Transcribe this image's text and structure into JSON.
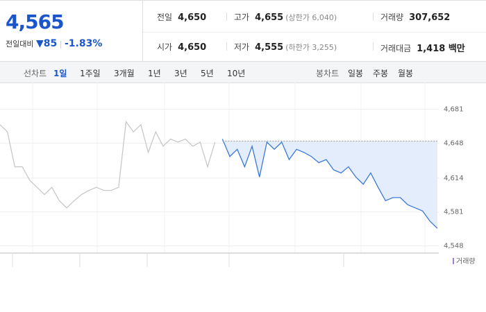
{
  "header": {
    "price": "4,565",
    "change_label": "전일대비",
    "change": "85",
    "change_pct": "-1.83%"
  },
  "quote": {
    "rows": [
      [
        {
          "label": "전일",
          "value": "4,650"
        },
        {
          "label": "고가",
          "value": "4,655",
          "note": "(상한가 6,040)"
        },
        {
          "label": "거래량",
          "value": "307,652"
        }
      ],
      [
        {
          "label": "시가",
          "value": "4,650"
        },
        {
          "label": "저가",
          "value": "4,555",
          "note": "(하한가 3,255)"
        },
        {
          "label": "거래대금",
          "value": "1,418 백만"
        }
      ]
    ]
  },
  "tabs": {
    "line_label": "선차트",
    "line_periods": [
      "1일",
      "1주일",
      "3개월",
      "1년",
      "3년",
      "5년",
      "10년"
    ],
    "selected": 0,
    "candle_label": "봉차트",
    "candle_periods": [
      "일봉",
      "주봉",
      "월봉"
    ]
  },
  "chart_data": {
    "type": "line",
    "legend": "거래량",
    "series": [
      {
        "color": "#c8c8c8",
        "values": [
          4666,
          4659,
          4625,
          4625,
          4612,
          4605,
          4598,
          4605,
          4592,
          4585,
          4592,
          4598,
          4602,
          4605,
          4602,
          4602,
          4605,
          4669,
          4659,
          4666,
          4639,
          4659,
          4645,
          4652,
          4649,
          4652,
          4645,
          4649,
          4625,
          4649,
          null,
          null,
          null,
          null,
          null,
          null,
          null,
          null,
          null,
          null,
          null,
          null,
          null,
          null,
          null,
          null,
          null,
          null,
          null,
          null,
          null,
          null,
          null,
          null,
          null,
          null,
          null,
          null,
          null,
          null
        ]
      },
      {
        "color": "#3a78d8",
        "fill": "#e3edfb",
        "values": [
          null,
          null,
          null,
          null,
          null,
          null,
          null,
          null,
          null,
          null,
          null,
          null,
          null,
          null,
          null,
          null,
          null,
          null,
          null,
          null,
          null,
          null,
          null,
          null,
          null,
          null,
          null,
          null,
          null,
          null,
          4652,
          4635,
          4642,
          4625,
          4645,
          4615,
          4649,
          4642,
          4649,
          4632,
          4642,
          4639,
          4635,
          4629,
          4632,
          4622,
          4619,
          4625,
          4615,
          4608,
          4619,
          4605,
          4592,
          4595,
          4595,
          4588,
          4585,
          4582,
          4572,
          4565
        ]
      }
    ],
    "reference_line": 4650,
    "ylim": [
      4541,
      4703
    ],
    "yticks": [
      {
        "value": 4548,
        "label": "4,548"
      },
      {
        "value": 4581,
        "label": "4,581"
      },
      {
        "value": 4614,
        "label": "4,614"
      },
      {
        "value": 4648,
        "label": "4,648"
      },
      {
        "value": 4681,
        "label": "4,681"
      }
    ],
    "grid": true
  }
}
